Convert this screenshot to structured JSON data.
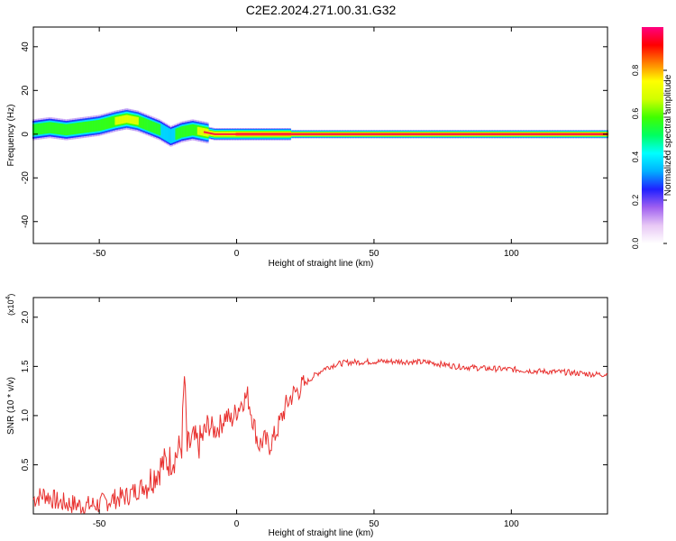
{
  "title": "C2E2.2024.271.00.31.G32",
  "chart_data": [
    {
      "type": "heatmap",
      "xlabel": "Height of straight line (km)",
      "ylabel": "Frequency (Hz)",
      "xlim": [
        -74,
        135
      ],
      "ylim": [
        -50,
        49
      ],
      "xticks": [
        -50,
        0,
        50,
        100
      ],
      "yticks": [
        -40,
        -20,
        0,
        20,
        40
      ],
      "colorbar": {
        "label": "Normalized spectral amplitude",
        "range": [
          0,
          1
        ],
        "ticks": [
          0.0,
          0.2,
          0.4,
          0.6,
          0.8
        ],
        "tick_labels": [
          "0.0",
          "0.2",
          "0.4",
          "0.6",
          "0.8"
        ],
        "colormap": [
          "#ffffff",
          "#e8c8f5",
          "#a060f0",
          "#2020ff",
          "#00b0ff",
          "#00ffff",
          "#00ff60",
          "#40ff00",
          "#d0ff00",
          "#ffff00",
          "#ff8000",
          "#ff0000",
          "#ff0080"
        ]
      },
      "ridge": {
        "x": [
          -74,
          -68,
          -62,
          -56,
          -50,
          -44,
          -40,
          -36,
          -32,
          -28,
          -24,
          -20,
          -16,
          -12,
          -8,
          0,
          10,
          20,
          40,
          60,
          80,
          100,
          120,
          135
        ],
        "freq": [
          2,
          3,
          2,
          3,
          4,
          6,
          7,
          6,
          4,
          2,
          -1,
          1,
          2,
          1,
          0,
          0,
          0,
          0,
          0,
          0,
          0,
          0,
          0,
          0
        ],
        "peak_amplitude": [
          0.55,
          0.6,
          0.6,
          0.65,
          0.65,
          0.7,
          0.75,
          0.7,
          0.6,
          0.55,
          0.5,
          0.6,
          0.65,
          0.75,
          0.8,
          0.85,
          0.85,
          0.9,
          0.92,
          0.95,
          0.95,
          0.95,
          0.95,
          0.95
        ]
      }
    },
    {
      "type": "line",
      "xlabel": "Height of straight line (km)",
      "ylabel": "SNR (10 * v/v)",
      "multiplier_label": "(x10",
      "multiplier_exponent": "4",
      "xlim": [
        -74,
        135
      ],
      "ylim": [
        0,
        2.2
      ],
      "xticks": [
        -50,
        0,
        50,
        100
      ],
      "yticks": [
        0.5,
        1.0,
        1.5,
        2.0
      ],
      "ytick_labels": [
        "0.5",
        "1.0",
        "1.5",
        "2.0"
      ],
      "series": [
        {
          "color": "#e8302e",
          "x": [
            -74,
            -70,
            -65,
            -60,
            -55,
            -50,
            -45,
            -40,
            -36,
            -33,
            -30,
            -27,
            -24,
            -22,
            -20,
            -19,
            -18,
            -16,
            -14,
            -12,
            -10,
            -8,
            -6,
            -4,
            -2,
            0,
            2,
            4,
            6,
            8,
            10,
            12,
            14,
            16,
            18,
            20,
            24,
            28,
            32,
            36,
            40,
            50,
            60,
            70,
            75,
            80,
            90,
            100,
            110,
            120,
            125,
            130,
            135
          ],
          "values": [
            0.15,
            0.2,
            0.12,
            0.1,
            0.08,
            0.1,
            0.15,
            0.18,
            0.25,
            0.3,
            0.4,
            0.5,
            0.55,
            0.6,
            0.7,
            1.4,
            0.65,
            0.75,
            0.7,
            0.8,
            0.9,
            0.85,
            0.9,
            1.0,
            0.95,
            1.05,
            1.15,
            1.2,
            0.95,
            0.7,
            0.75,
            0.7,
            0.8,
            0.95,
            1.1,
            1.2,
            1.3,
            1.4,
            1.48,
            1.52,
            1.54,
            1.55,
            1.55,
            1.54,
            1.52,
            1.5,
            1.48,
            1.47,
            1.45,
            1.44,
            1.43,
            1.42,
            1.42
          ]
        }
      ]
    }
  ]
}
